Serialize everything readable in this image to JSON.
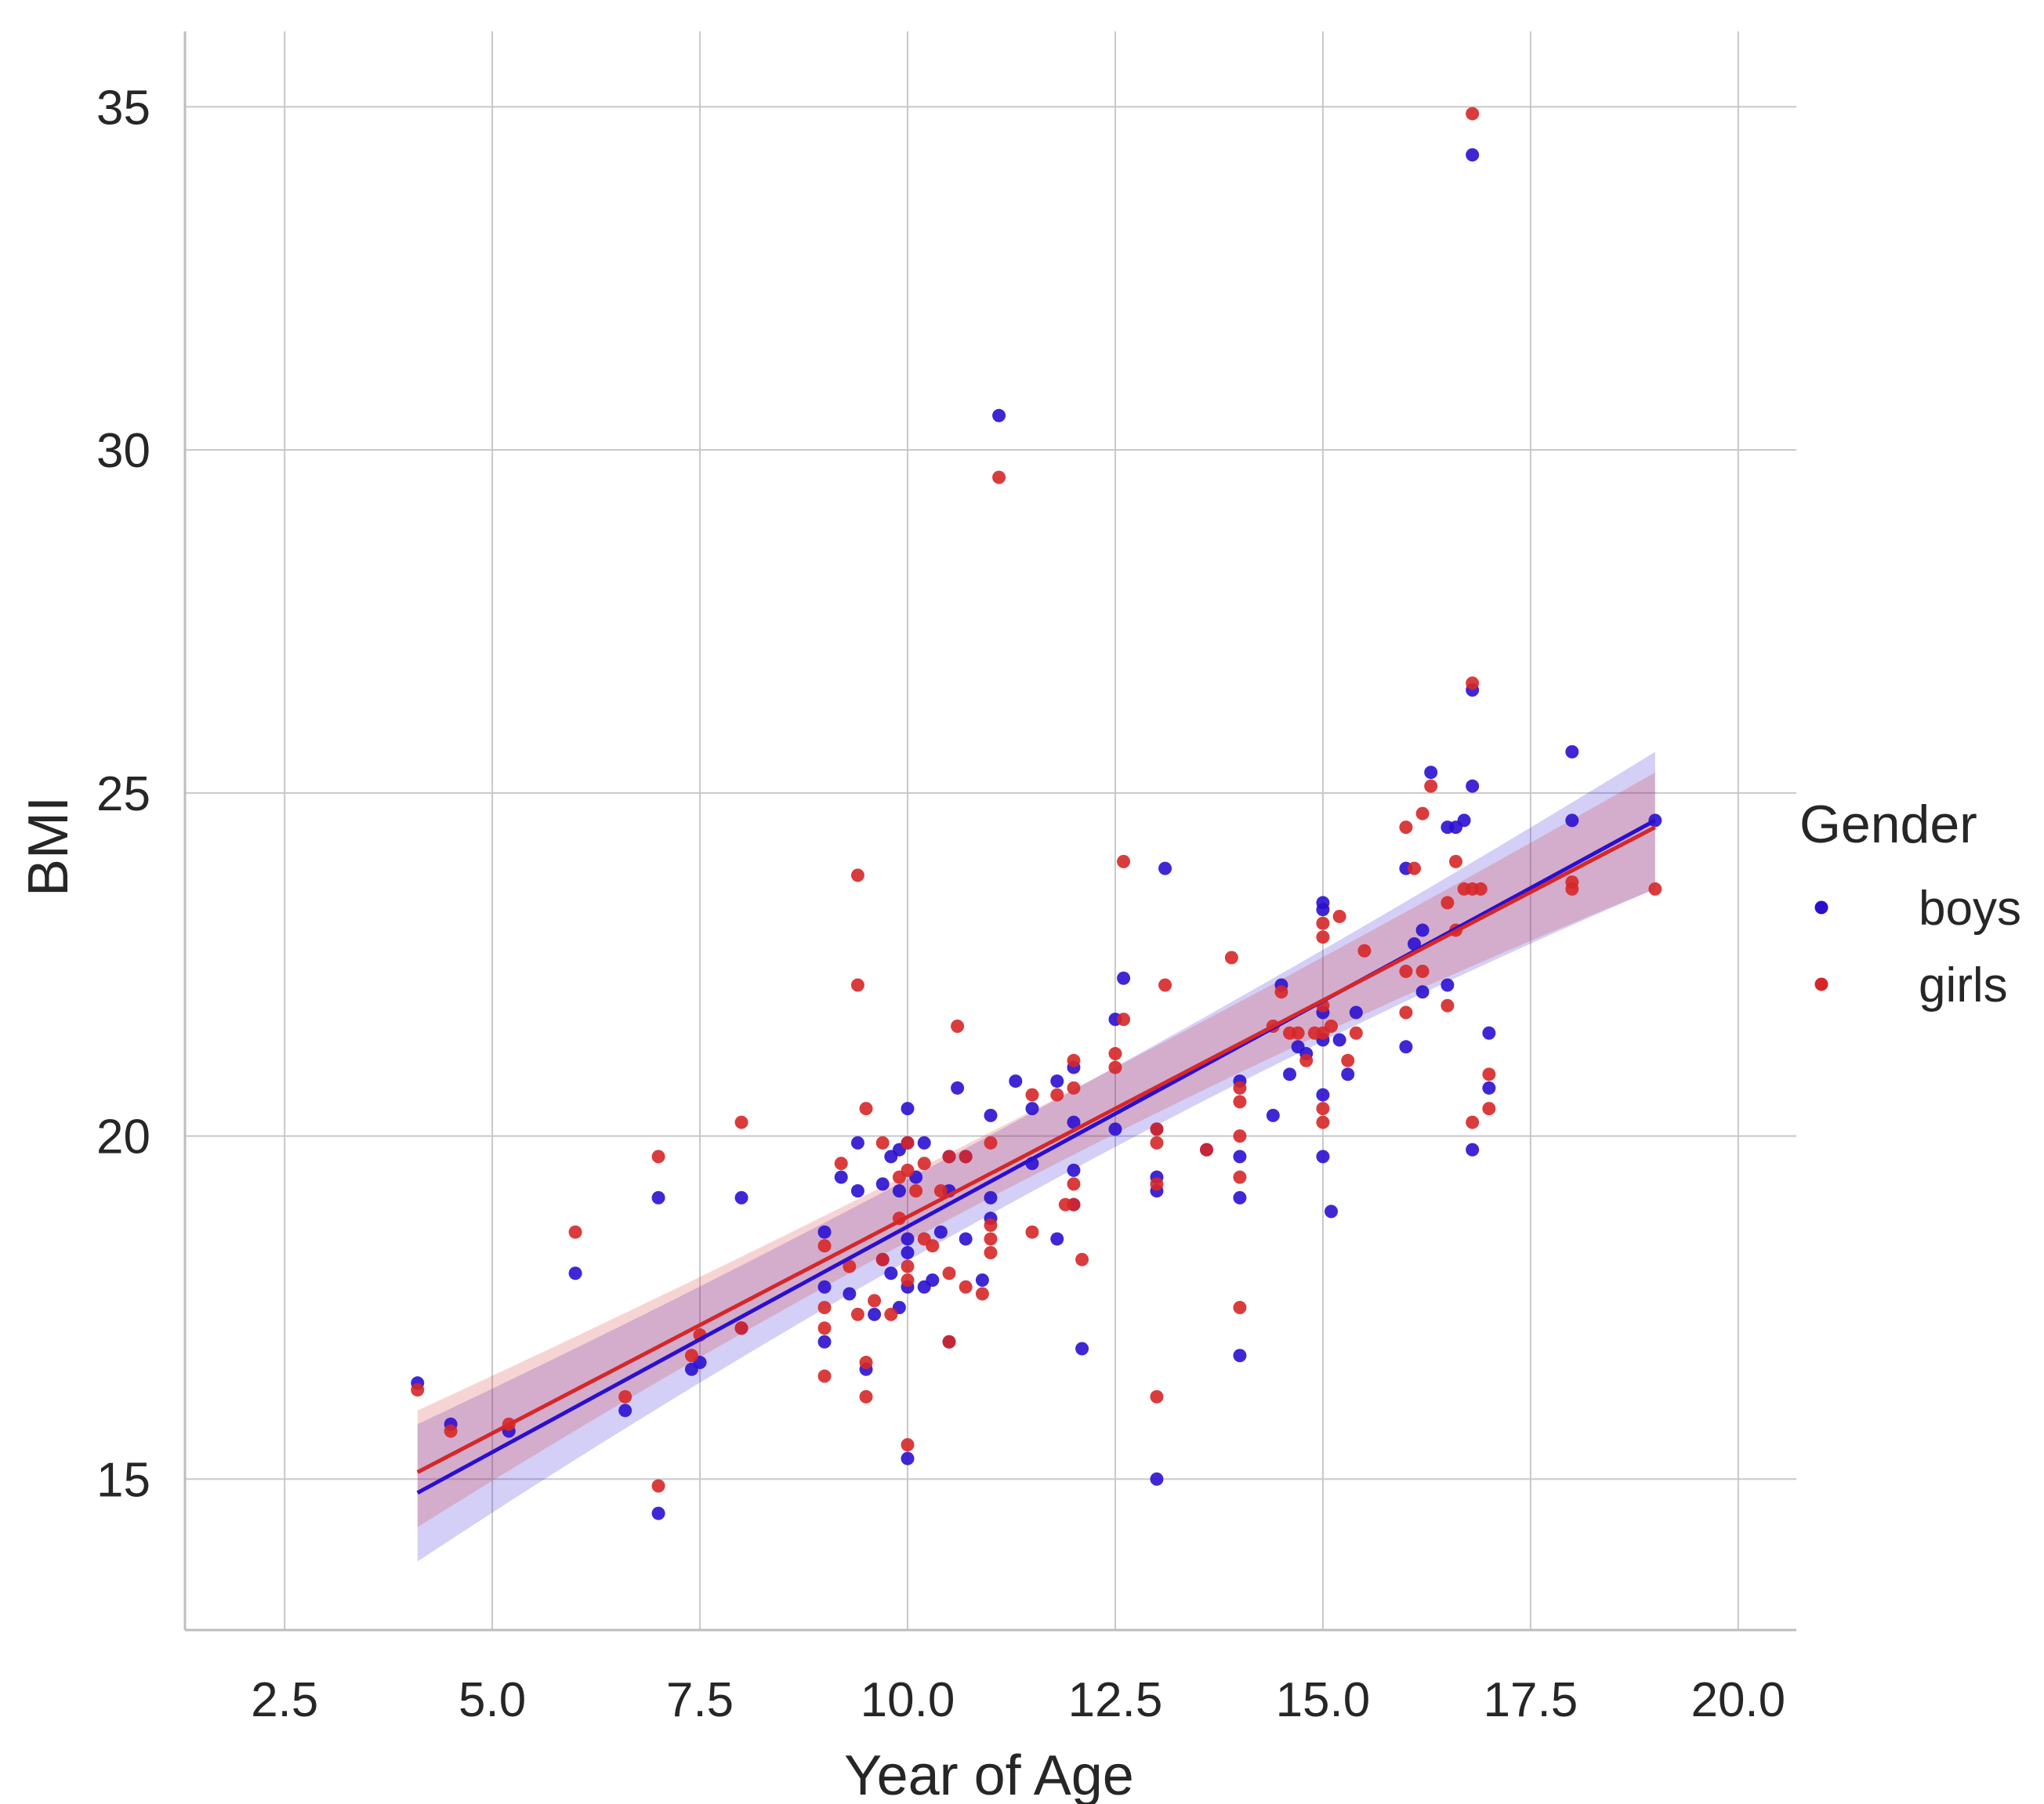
{
  "chart_data": {
    "type": "scatter",
    "title": "",
    "xlabel": "Year of Age",
    "ylabel": "BMI",
    "xlim": [
      1.3,
      20.7
    ],
    "ylim": [
      12.8,
      36.1
    ],
    "xticks": [
      2.5,
      5.0,
      7.5,
      10.0,
      12.5,
      15.0,
      17.5,
      20.0
    ],
    "xtick_labels": [
      "2.5",
      "5.0",
      "7.5",
      "10.0",
      "12.5",
      "15.0",
      "17.5",
      "20.0"
    ],
    "yticks": [
      15,
      20,
      25,
      30,
      35
    ],
    "ytick_labels": [
      "15",
      "20",
      "25",
      "30",
      "35"
    ],
    "grid": true,
    "legend": {
      "title": "Gender",
      "placement": "right"
    },
    "series": [
      {
        "name": "boys",
        "color": "#2a0fd0",
        "regression": {
          "x_start": 4.1,
          "x_end": 19.0,
          "y_start": 14.8,
          "y_end": 24.6,
          "ci_start": [
            13.8,
            15.8
          ],
          "ci_mid": [
            19.6,
            20.2
          ],
          "ci_end": [
            23.6,
            25.6
          ]
        },
        "points": [
          [
            4.1,
            16.4
          ],
          [
            4.5,
            15.8
          ],
          [
            5.2,
            15.7
          ],
          [
            6.0,
            18.0
          ],
          [
            6.6,
            16.0
          ],
          [
            7.0,
            19.1
          ],
          [
            7.0,
            14.5
          ],
          [
            7.4,
            16.6
          ],
          [
            7.5,
            16.7
          ],
          [
            8.0,
            19.1
          ],
          [
            8.0,
            17.2
          ],
          [
            9.0,
            18.6
          ],
          [
            9.0,
            17.8
          ],
          [
            9.0,
            17.0
          ],
          [
            9.2,
            19.4
          ],
          [
            9.3,
            17.7
          ],
          [
            9.4,
            19.9
          ],
          [
            9.4,
            19.2
          ],
          [
            9.5,
            16.6
          ],
          [
            9.6,
            17.4
          ],
          [
            9.7,
            19.3
          ],
          [
            9.7,
            18.2
          ],
          [
            9.8,
            19.7
          ],
          [
            9.8,
            18.0
          ],
          [
            9.9,
            19.8
          ],
          [
            9.9,
            19.2
          ],
          [
            9.9,
            17.5
          ],
          [
            10.0,
            20.4
          ],
          [
            10.0,
            19.9
          ],
          [
            10.0,
            18.5
          ],
          [
            10.0,
            18.3
          ],
          [
            10.0,
            17.8
          ],
          [
            10.0,
            15.3
          ],
          [
            10.1,
            19.4
          ],
          [
            10.2,
            19.9
          ],
          [
            10.2,
            17.8
          ],
          [
            10.3,
            17.9
          ],
          [
            10.4,
            18.6
          ],
          [
            10.5,
            19.7
          ],
          [
            10.5,
            19.2
          ],
          [
            10.5,
            17.0
          ],
          [
            10.6,
            20.7
          ],
          [
            10.7,
            19.7
          ],
          [
            10.7,
            18.5
          ],
          [
            10.9,
            17.9
          ],
          [
            11.0,
            20.3
          ],
          [
            11.0,
            19.1
          ],
          [
            11.0,
            18.8
          ],
          [
            11.1,
            30.5
          ],
          [
            11.3,
            20.8
          ],
          [
            11.5,
            20.4
          ],
          [
            11.5,
            19.6
          ],
          [
            11.8,
            20.8
          ],
          [
            11.8,
            18.5
          ],
          [
            12.0,
            21.0
          ],
          [
            12.0,
            20.2
          ],
          [
            12.0,
            19.5
          ],
          [
            12.0,
            19.0
          ],
          [
            12.1,
            16.9
          ],
          [
            12.5,
            21.7
          ],
          [
            12.5,
            20.1
          ],
          [
            12.6,
            22.3
          ],
          [
            13.0,
            20.1
          ],
          [
            13.0,
            19.4
          ],
          [
            13.0,
            19.2
          ],
          [
            13.0,
            15.0
          ],
          [
            13.1,
            23.9
          ],
          [
            13.6,
            19.8
          ],
          [
            14.0,
            20.8
          ],
          [
            14.0,
            19.7
          ],
          [
            14.0,
            19.1
          ],
          [
            14.0,
            16.8
          ],
          [
            14.4,
            20.3
          ],
          [
            14.5,
            22.2
          ],
          [
            14.6,
            20.9
          ],
          [
            14.7,
            21.3
          ],
          [
            14.8,
            21.2
          ],
          [
            15.0,
            23.4
          ],
          [
            15.0,
            23.3
          ],
          [
            15.0,
            21.8
          ],
          [
            15.0,
            21.4
          ],
          [
            15.0,
            20.6
          ],
          [
            15.0,
            19.7
          ],
          [
            15.1,
            18.9
          ],
          [
            15.2,
            21.4
          ],
          [
            15.3,
            20.9
          ],
          [
            15.4,
            21.8
          ],
          [
            16.0,
            23.9
          ],
          [
            16.0,
            21.3
          ],
          [
            16.1,
            22.8
          ],
          [
            16.2,
            23.0
          ],
          [
            16.2,
            22.1
          ],
          [
            16.3,
            25.3
          ],
          [
            16.5,
            24.5
          ],
          [
            16.5,
            22.2
          ],
          [
            16.6,
            24.5
          ],
          [
            16.7,
            24.6
          ],
          [
            16.8,
            34.3
          ],
          [
            16.8,
            26.5
          ],
          [
            16.8,
            25.1
          ],
          [
            16.8,
            19.8
          ],
          [
            17.0,
            21.5
          ],
          [
            17.0,
            20.7
          ],
          [
            18.0,
            25.6
          ],
          [
            18.0,
            24.6
          ],
          [
            19.0,
            24.6
          ]
        ]
      },
      {
        "name": "girls",
        "color": "#d62728",
        "regression": {
          "x_start": 4.1,
          "x_end": 19.0,
          "y_start": 15.1,
          "y_end": 24.5,
          "ci_start": [
            14.3,
            16.0
          ],
          "ci_mid": [
            19.8,
            20.3
          ],
          "ci_end": [
            23.6,
            25.3
          ]
        },
        "points": [
          [
            4.1,
            16.3
          ],
          [
            4.5,
            15.7
          ],
          [
            5.2,
            15.8
          ],
          [
            6.0,
            18.6
          ],
          [
            6.6,
            16.2
          ],
          [
            7.0,
            19.7
          ],
          [
            7.0,
            14.9
          ],
          [
            7.4,
            16.8
          ],
          [
            7.5,
            17.1
          ],
          [
            8.0,
            20.2
          ],
          [
            8.0,
            17.2
          ],
          [
            9.0,
            18.4
          ],
          [
            9.0,
            17.5
          ],
          [
            9.0,
            17.2
          ],
          [
            9.0,
            16.5
          ],
          [
            9.2,
            19.6
          ],
          [
            9.3,
            18.1
          ],
          [
            9.4,
            23.8
          ],
          [
            9.4,
            22.2
          ],
          [
            9.4,
            17.4
          ],
          [
            9.5,
            20.4
          ],
          [
            9.5,
            16.7
          ],
          [
            9.5,
            16.2
          ],
          [
            9.6,
            17.6
          ],
          [
            9.7,
            19.9
          ],
          [
            9.7,
            18.2
          ],
          [
            9.8,
            17.4
          ],
          [
            9.9,
            19.4
          ],
          [
            9.9,
            18.8
          ],
          [
            10.0,
            19.9
          ],
          [
            10.0,
            19.5
          ],
          [
            10.0,
            18.1
          ],
          [
            10.0,
            17.9
          ],
          [
            10.0,
            15.5
          ],
          [
            10.1,
            19.2
          ],
          [
            10.2,
            19.6
          ],
          [
            10.2,
            18.5
          ],
          [
            10.3,
            18.4
          ],
          [
            10.4,
            19.2
          ],
          [
            10.5,
            19.7
          ],
          [
            10.5,
            18.0
          ],
          [
            10.5,
            17.0
          ],
          [
            10.6,
            21.6
          ],
          [
            10.7,
            19.7
          ],
          [
            10.7,
            17.8
          ],
          [
            10.9,
            17.7
          ],
          [
            11.0,
            19.9
          ],
          [
            11.0,
            18.7
          ],
          [
            11.0,
            18.5
          ],
          [
            11.0,
            18.3
          ],
          [
            11.1,
            29.6
          ],
          [
            11.5,
            20.6
          ],
          [
            11.5,
            18.6
          ],
          [
            11.8,
            20.6
          ],
          [
            11.9,
            19.0
          ],
          [
            12.0,
            21.1
          ],
          [
            12.0,
            20.7
          ],
          [
            12.0,
            19.3
          ],
          [
            12.0,
            19.0
          ],
          [
            12.1,
            18.2
          ],
          [
            12.5,
            21.2
          ],
          [
            12.5,
            21.0
          ],
          [
            12.6,
            24.0
          ],
          [
            12.6,
            21.7
          ],
          [
            13.0,
            20.1
          ],
          [
            13.0,
            19.9
          ],
          [
            13.0,
            19.3
          ],
          [
            13.0,
            16.2
          ],
          [
            13.1,
            22.2
          ],
          [
            13.6,
            19.8
          ],
          [
            13.9,
            22.6
          ],
          [
            14.0,
            20.7
          ],
          [
            14.0,
            20.5
          ],
          [
            14.0,
            20.0
          ],
          [
            14.0,
            19.4
          ],
          [
            14.0,
            17.5
          ],
          [
            14.4,
            21.6
          ],
          [
            14.5,
            22.1
          ],
          [
            14.6,
            21.5
          ],
          [
            14.7,
            21.5
          ],
          [
            14.8,
            21.1
          ],
          [
            14.9,
            21.5
          ],
          [
            15.0,
            23.1
          ],
          [
            15.0,
            22.9
          ],
          [
            15.0,
            21.9
          ],
          [
            15.0,
            21.5
          ],
          [
            15.0,
            20.4
          ],
          [
            15.0,
            20.2
          ],
          [
            15.1,
            21.6
          ],
          [
            15.2,
            23.2
          ],
          [
            15.3,
            21.1
          ],
          [
            15.4,
            21.5
          ],
          [
            15.5,
            22.7
          ],
          [
            16.0,
            24.5
          ],
          [
            16.0,
            22.4
          ],
          [
            16.0,
            21.8
          ],
          [
            16.1,
            23.9
          ],
          [
            16.2,
            24.7
          ],
          [
            16.2,
            22.4
          ],
          [
            16.3,
            25.1
          ],
          [
            16.5,
            23.4
          ],
          [
            16.5,
            21.9
          ],
          [
            16.6,
            24.0
          ],
          [
            16.6,
            23.0
          ],
          [
            16.7,
            23.6
          ],
          [
            16.8,
            34.9
          ],
          [
            16.8,
            26.6
          ],
          [
            16.8,
            23.6
          ],
          [
            16.8,
            20.2
          ],
          [
            16.9,
            23.6
          ],
          [
            17.0,
            20.9
          ],
          [
            17.0,
            20.4
          ],
          [
            18.0,
            23.7
          ],
          [
            18.0,
            23.6
          ],
          [
            19.0,
            23.6
          ]
        ]
      }
    ]
  }
}
